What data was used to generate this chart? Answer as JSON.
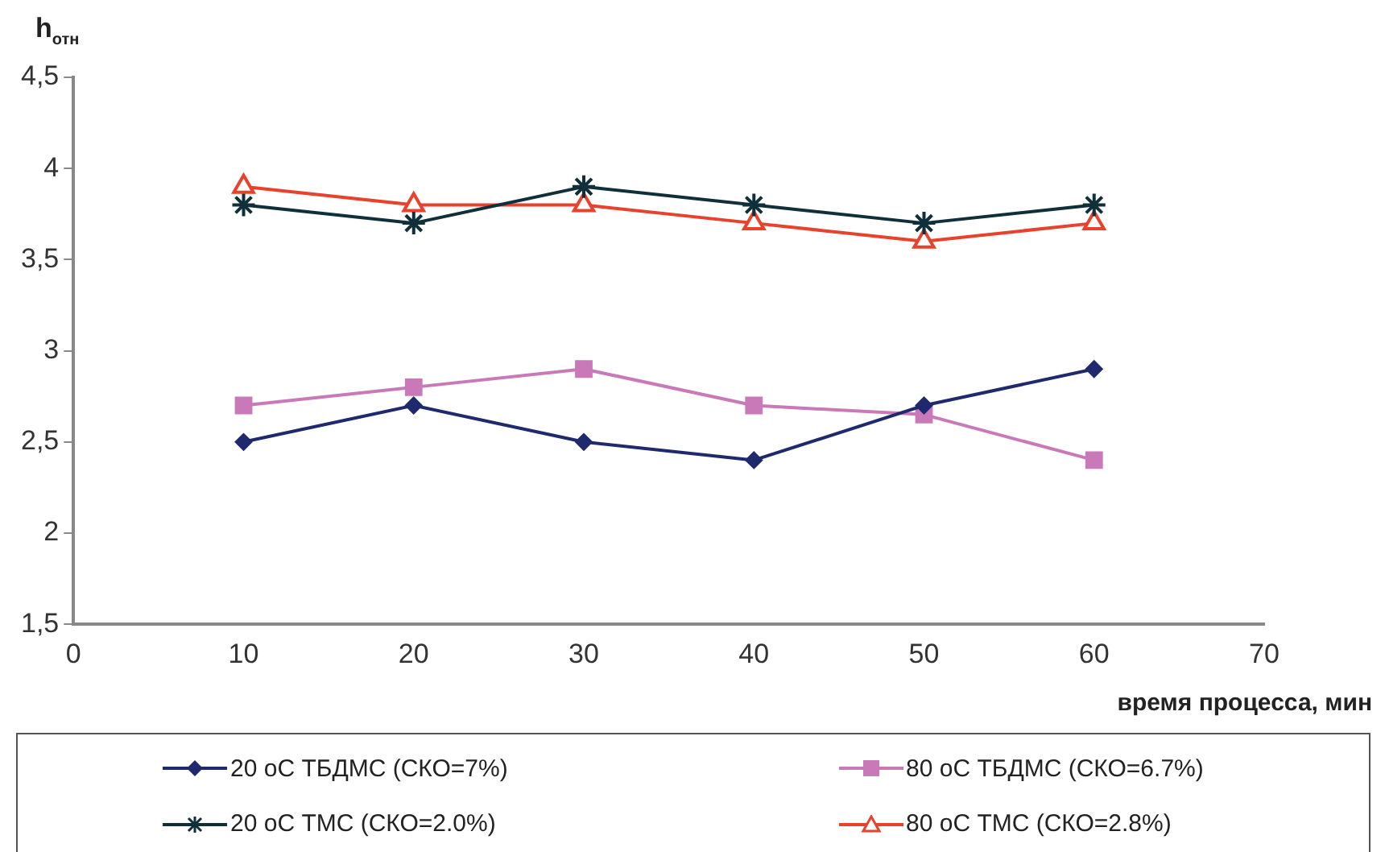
{
  "chart_data": {
    "type": "line",
    "ylabel": "h$_{отн}$",
    "xlabel": "время процесса, мин",
    "x": [
      10,
      20,
      30,
      40,
      50,
      60
    ],
    "series": [
      {
        "name": "20 оС ТБДМС (СКО=7%)",
        "color": "#1f2a6e",
        "marker": "diamond",
        "values": [
          2.5,
          2.7,
          2.5,
          2.4,
          2.7,
          2.9
        ]
      },
      {
        "name": "80 оС ТБДМС (СКО=6.7%)",
        "color": "#c978b8",
        "marker": "square",
        "values": [
          2.7,
          2.8,
          2.9,
          2.7,
          2.65,
          2.4
        ]
      },
      {
        "name": "20 оС ТМС (СКО=2.0%)",
        "color": "#0f2f3a",
        "marker": "cross",
        "values": [
          3.8,
          3.7,
          3.9,
          3.8,
          3.7,
          3.8
        ]
      },
      {
        "name": "80 оС ТМС (СКО=2.8%)",
        "color": "#e8412c",
        "marker": "triangle",
        "values": [
          3.9,
          3.8,
          3.8,
          3.7,
          3.6,
          3.7
        ]
      }
    ],
    "xlim": [
      0,
      70
    ],
    "xticks": [
      0,
      10,
      20,
      30,
      40,
      50,
      60,
      70
    ],
    "ylim": [
      1.5,
      4.5
    ],
    "yticks": [
      {
        "value": 1.5,
        "label": "1,5"
      },
      2,
      {
        "value": 2.5,
        "label": "2,5"
      },
      3,
      {
        "value": 3.5,
        "label": "3,5"
      },
      4,
      {
        "value": 4.5,
        "label": "4,5"
      }
    ],
    "grid": false,
    "legend": "bottom",
    "line_style": "solid"
  }
}
